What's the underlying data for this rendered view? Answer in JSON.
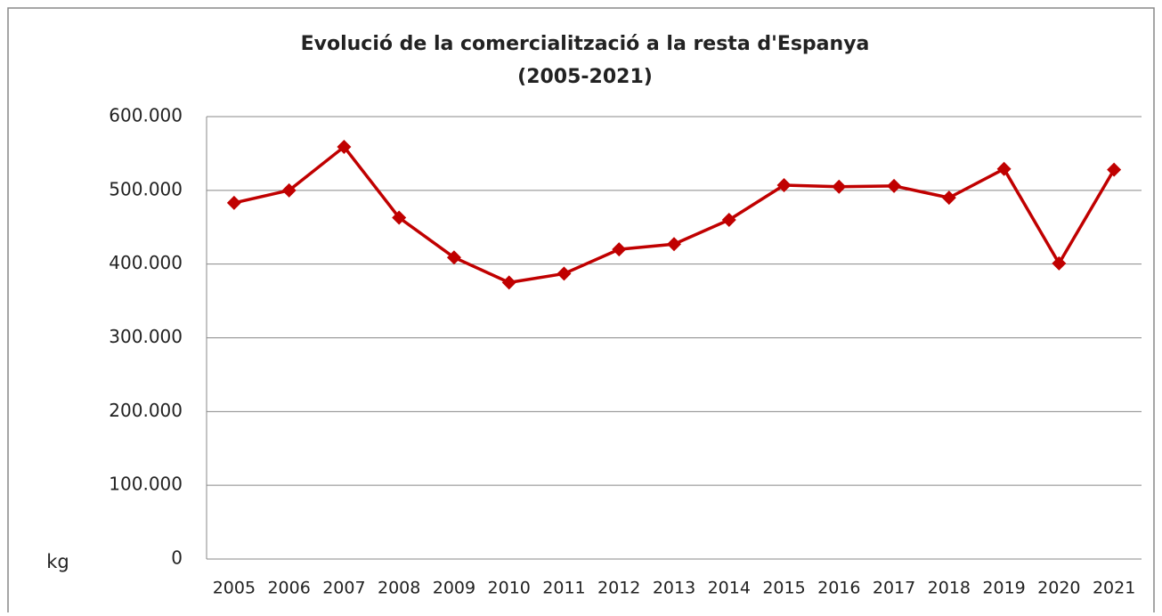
{
  "chart_data": {
    "type": "line",
    "title": "Evolució de la comercialització a la resta d'Espanya",
    "subtitle": "(2005-2021)",
    "y_label": "kg",
    "categories": [
      "2005",
      "2006",
      "2007",
      "2008",
      "2009",
      "2010",
      "2011",
      "2012",
      "2013",
      "2014",
      "2015",
      "2016",
      "2017",
      "2018",
      "2019",
      "2020",
      "2021"
    ],
    "series": [
      {
        "name": "kg",
        "color": "#c00000",
        "values": [
          483000,
          500000,
          559000,
          463000,
          409000,
          375000,
          387000,
          420000,
          427000,
          460000,
          507000,
          505000,
          506000,
          490000,
          529000,
          401000,
          528000
        ]
      }
    ],
    "ylim": [
      0,
      600000
    ],
    "yticks": [
      0,
      {
        "value": 100000,
        "label": "100.000"
      },
      {
        "value": 200000,
        "label": "200.000"
      },
      {
        "value": 300000,
        "label": "300.000"
      },
      {
        "value": 400000,
        "label": "400.000"
      },
      {
        "value": 500000,
        "label": "500.000"
      },
      {
        "value": 600000,
        "label": "600.000"
      }
    ],
    "grid": true
  }
}
